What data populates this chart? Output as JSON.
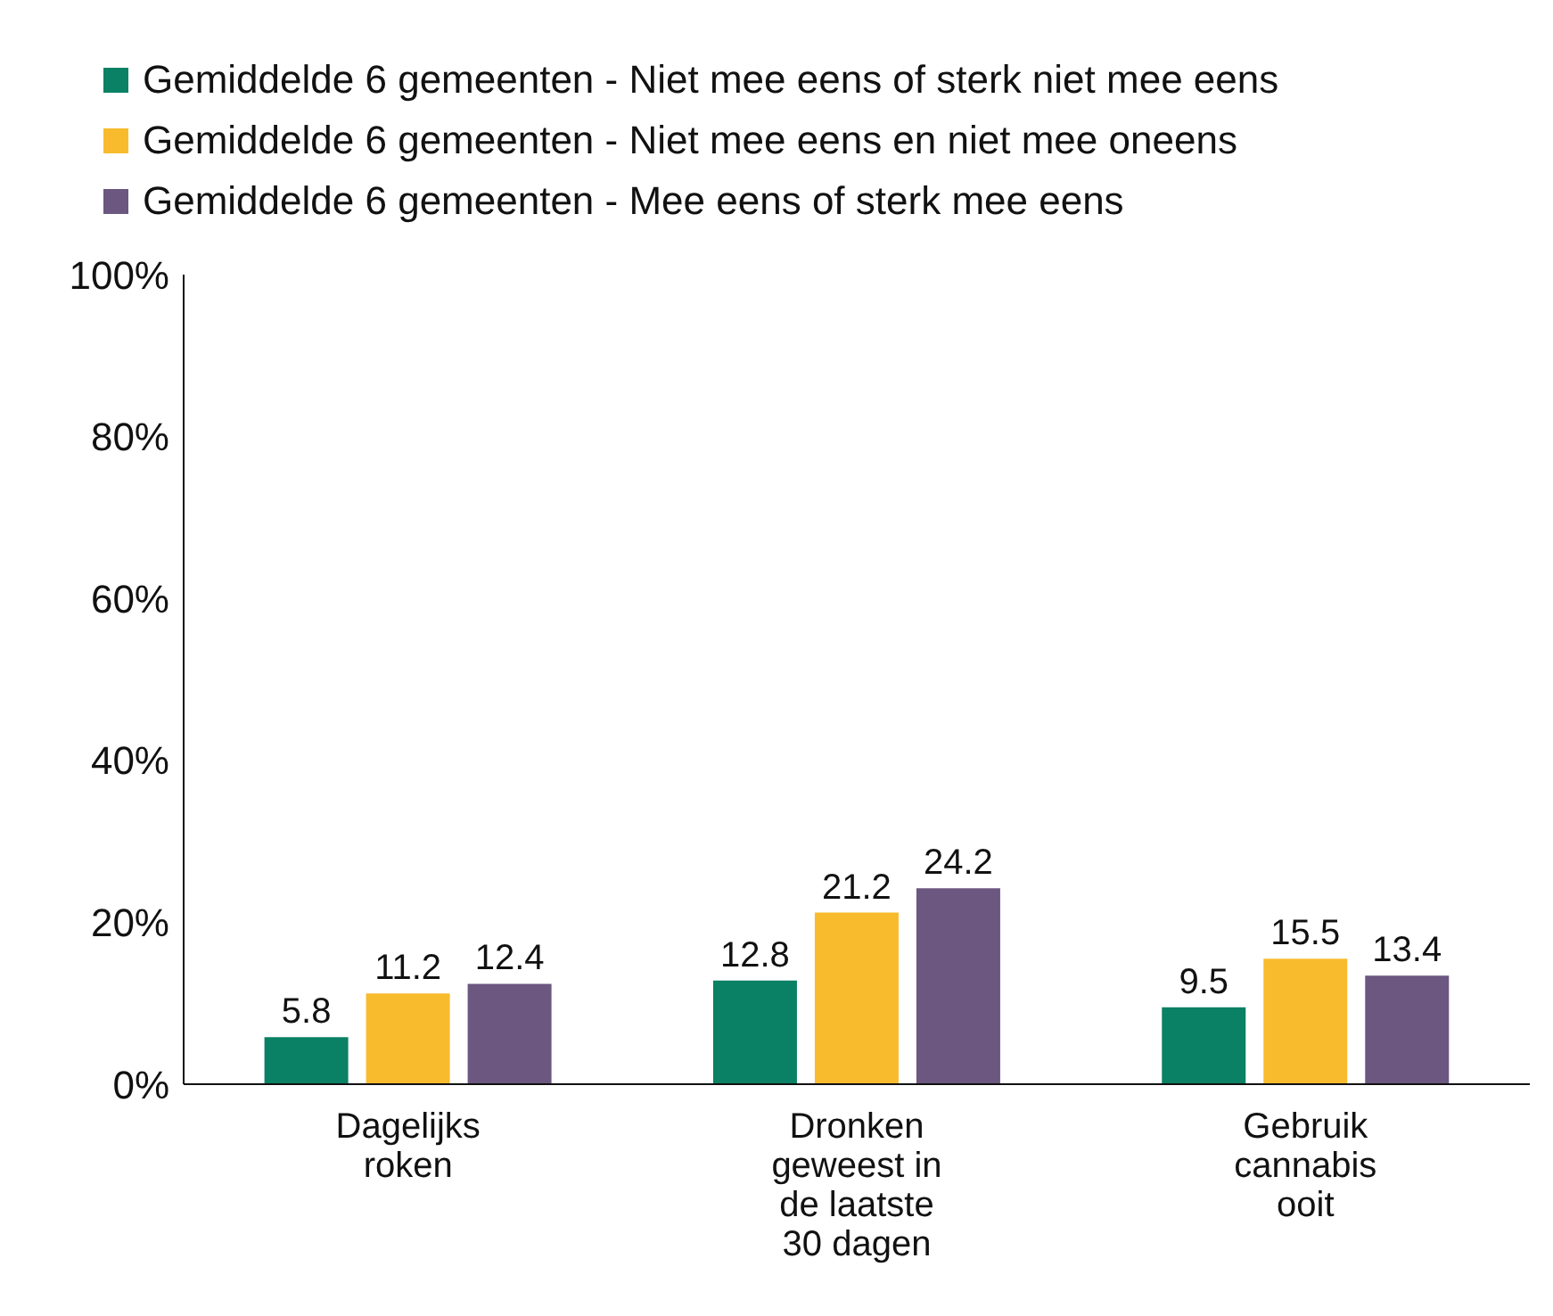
{
  "chart_data": {
    "type": "bar",
    "categories": [
      "Dagelijks roken",
      "Dronken geweest in de laatste 30 dagen",
      "Gebruik cannabis ooit"
    ],
    "series": [
      {
        "name": "Gemiddelde 6 gemeenten - Niet mee eens of sterk niet mee eens",
        "color": "#0a8064",
        "values": [
          5.8,
          12.8,
          9.5
        ]
      },
      {
        "name": "Gemiddelde 6 gemeenten - Niet mee eens en niet mee oneens",
        "color": "#f8bb2d",
        "values": [
          11.2,
          21.2,
          15.5
        ]
      },
      {
        "name": "Gemiddelde 6 gemeenten - Mee eens of sterk mee eens",
        "color": "#6b5780",
        "values": [
          12.4,
          24.2,
          13.4
        ]
      }
    ],
    "ylim": [
      0,
      100
    ],
    "yticks": [
      {
        "value": 0,
        "label": "0%"
      },
      {
        "value": 20,
        "label": "20%"
      },
      {
        "value": 40,
        "label": "40%"
      },
      {
        "value": 60,
        "label": "60%"
      },
      {
        "value": 80,
        "label": "80%"
      },
      {
        "value": 100,
        "label": "100%"
      }
    ],
    "data_labels": true,
    "legend": "top",
    "grid": false
  }
}
